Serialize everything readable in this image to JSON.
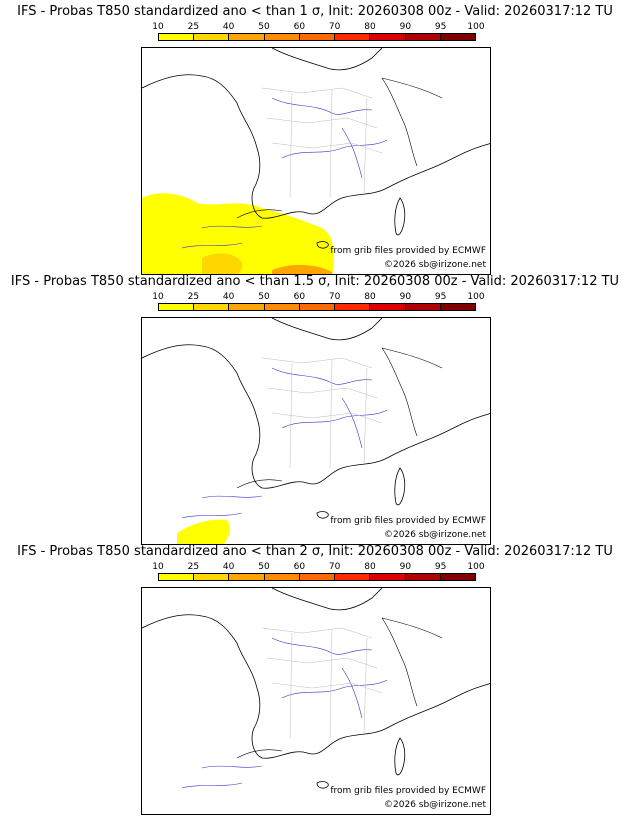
{
  "legend": {
    "ticks": [
      "10",
      "25",
      "40",
      "50",
      "60",
      "70",
      "80",
      "90",
      "95",
      "100"
    ],
    "colors": [
      "#ffff00",
      "#ffd700",
      "#ffa500",
      "#ff8c00",
      "#ff6a00",
      "#ff2a00",
      "#dd0000",
      "#b00000",
      "#800000"
    ]
  },
  "panels": [
    {
      "title": "IFS - Probas T850  standardized ano < than 1 σ, Init: 20260308 00z - Valid: 20260317:12 TU",
      "credit_source": "from grib files provided by ECMWF",
      "credit_copyright": "©2026 sb@irizone.net"
    },
    {
      "title": "IFS - Probas T850  standardized ano < than 1.5 σ, Init: 20260308 00z - Valid: 20260317:12 TU",
      "credit_source": "from grib files provided by ECMWF",
      "credit_copyright": "©2026 sb@irizone.net"
    },
    {
      "title": "IFS - Probas T850  standardized ano < than 2 σ, Init: 20260308 00z - Valid: 20260317:12 TU",
      "credit_source": "from grib files provided by ECMWF",
      "credit_copyright": "©2026 sb@irizone.net"
    }
  ]
}
